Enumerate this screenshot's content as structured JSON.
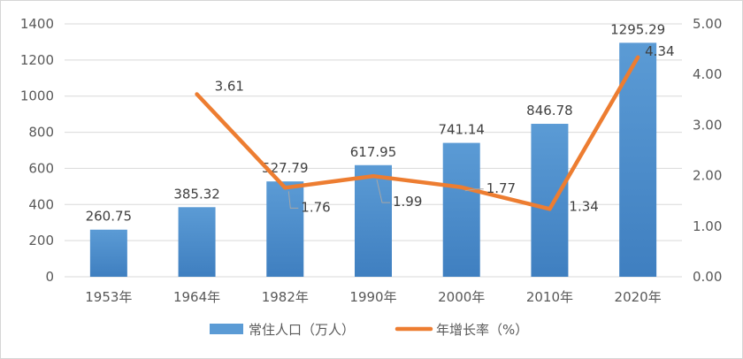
{
  "chart_data": {
    "type": "bar",
    "categories": [
      "1953年",
      "1964年",
      "1982年",
      "1990年",
      "2000年",
      "2010年",
      "2020年"
    ],
    "series": [
      {
        "name": "常住人口（万人）",
        "type": "bar",
        "axis": "left",
        "values": [
          260.75,
          385.32,
          527.79,
          617.95,
          741.14,
          846.78,
          1295.29
        ],
        "labels": [
          "260.75",
          "385.32",
          "527.79",
          "617.95",
          "741.14",
          "846.78",
          "1295.29"
        ]
      },
      {
        "name": "年增长率（%）",
        "type": "line",
        "axis": "right",
        "values": [
          null,
          3.61,
          1.76,
          1.99,
          1.77,
          1.34,
          4.34
        ],
        "labels": [
          "",
          "3.61",
          "1.76",
          "1.99",
          "1.77",
          "1.34",
          "4.34"
        ]
      }
    ],
    "y_left": {
      "min": 0,
      "max": 1400,
      "ticks": [
        "0",
        "200",
        "400",
        "600",
        "800",
        "1000",
        "1200",
        "1400"
      ]
    },
    "y_right": {
      "min": 0,
      "max": 5,
      "ticks": [
        "0.00",
        "1.00",
        "2.00",
        "3.00",
        "4.00",
        "5.00"
      ]
    },
    "grid": true,
    "legend_position": "bottom",
    "colors": {
      "bar": "#5b9bd5",
      "bar_dark": "#3f7fc0",
      "line": "#ed7d31",
      "grid": "#d9d9d9"
    }
  }
}
